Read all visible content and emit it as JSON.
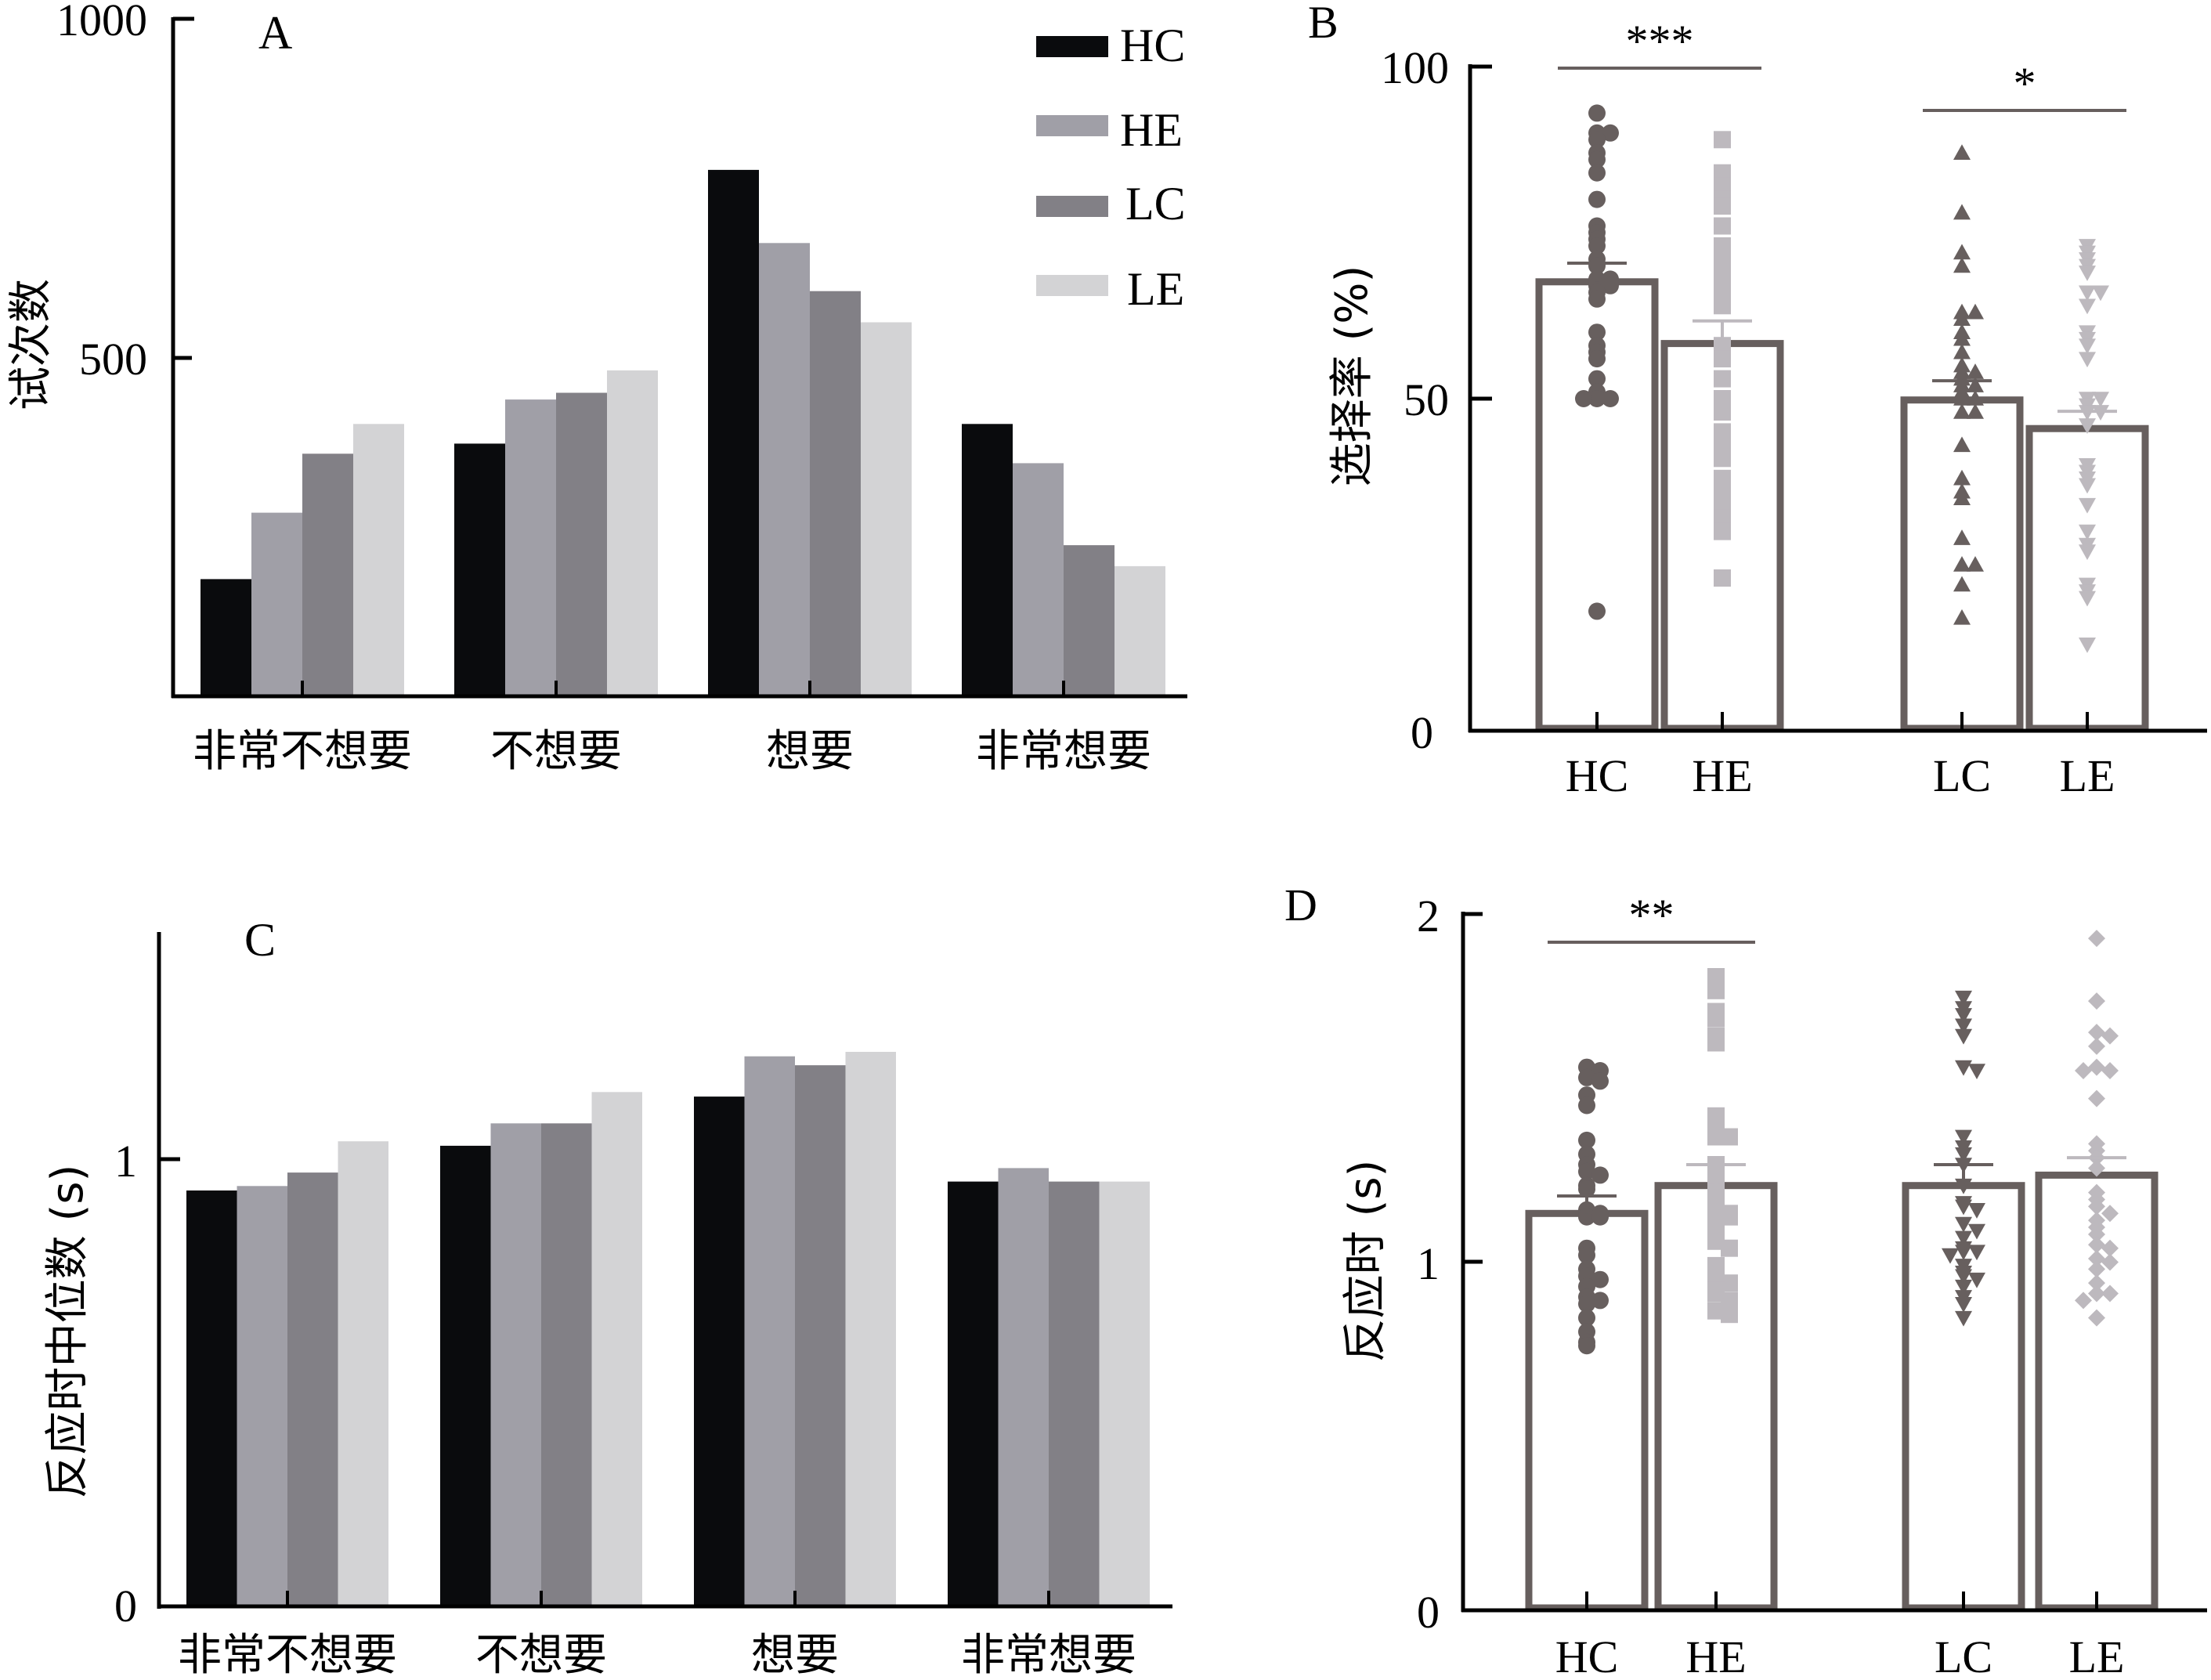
{
  "colors": {
    "HC": "#0a0b0d",
    "HE": "#a09fa7",
    "LC": "#828086",
    "LE": "#d3d3d5",
    "bar_outline": "#675f5e",
    "dot_dark": "#675f5e",
    "dot_light": "#bdb9be",
    "axis": "#000000"
  },
  "chart_data": [
    {
      "id": "A",
      "panel_label": "A",
      "type": "bar",
      "title": "",
      "xlabel": "",
      "ylabel": "试次数",
      "ylim": [
        0,
        1000
      ],
      "yticks": [
        {
          "value": 500,
          "label": "500"
        },
        {
          "value": 1000,
          "label": "1000"
        }
      ],
      "categories": [
        "非常不想要",
        "不想要",
        "想要",
        "非常想要"
      ],
      "legend": {
        "placement": "top-right",
        "entries": [
          "HC",
          "HE",
          "LC",
          "LE"
        ]
      },
      "series": [
        {
          "name": "HC",
          "values": [
            173,
            373,
            777,
            402
          ]
        },
        {
          "name": "HE",
          "values": [
            271,
            438,
            669,
            344
          ]
        },
        {
          "name": "LC",
          "values": [
            358,
            448,
            598,
            223
          ]
        },
        {
          "name": "LE",
          "values": [
            402,
            481,
            552,
            192
          ]
        }
      ]
    },
    {
      "id": "B",
      "panel_label": "B",
      "type": "bar",
      "title": "",
      "xlabel": "",
      "ylabel": "选择率 (%)",
      "ylim": [
        0,
        100
      ],
      "yticks": [
        {
          "value": 0,
          "label": "0"
        },
        {
          "value": 50,
          "label": "50"
        },
        {
          "value": 100,
          "label": "100"
        }
      ],
      "categories": [
        "HC",
        "HE",
        "LC",
        "LE"
      ],
      "values": [
        67.6,
        58.3,
        49.8,
        45.5
      ],
      "error_sem": [
        2.8,
        3.4,
        2.9,
        2.6
      ],
      "markers": [
        "circle",
        "square",
        "triangle-up",
        "triangle-down"
      ],
      "points": {
        "HC": [
          93,
          90,
          90,
          89,
          87,
          86,
          84,
          80,
          76,
          75,
          74,
          73,
          71,
          70,
          68,
          68,
          67,
          67,
          66,
          65,
          60,
          58,
          57,
          56,
          53,
          51,
          50,
          50,
          50,
          18
        ],
        "HE": [
          89,
          84,
          83,
          82,
          80,
          79,
          76,
          73,
          71,
          70,
          69,
          68,
          67,
          66,
          64,
          58,
          56,
          53,
          50,
          49,
          48,
          45,
          43,
          41,
          38,
          36,
          34,
          32,
          30,
          23
        ],
        "LC": [
          87,
          78,
          72,
          70,
          63,
          63,
          62,
          60,
          59,
          57,
          55,
          54,
          54,
          53,
          52,
          52,
          51,
          50,
          50,
          48,
          48,
          43,
          38,
          36,
          35,
          29,
          25,
          25,
          22,
          17
        ],
        "LE": [
          73,
          72,
          71,
          70,
          69,
          66,
          66,
          64,
          60,
          59,
          58,
          56,
          50,
          50,
          49,
          48,
          48,
          46,
          40,
          39,
          38,
          37,
          34,
          30,
          28,
          27,
          22,
          21,
          20,
          13
        ]
      },
      "significance": [
        {
          "pair": [
            "HC",
            "HE"
          ],
          "label": "***"
        },
        {
          "pair": [
            "LC",
            "LE"
          ],
          "label": "*"
        }
      ]
    },
    {
      "id": "C",
      "panel_label": "C",
      "type": "bar",
      "title": "",
      "xlabel": "",
      "ylabel": "反应时中位数 (s)",
      "ylim": [
        0,
        1.5
      ],
      "yticks": [
        {
          "value": 0,
          "label": "0"
        },
        {
          "value": 1,
          "label": "1"
        }
      ],
      "categories": [
        "非常不想要",
        "不想要",
        "想要",
        "非常想要"
      ],
      "series": [
        {
          "name": "HC",
          "values": [
            0.93,
            1.03,
            1.14,
            0.95
          ]
        },
        {
          "name": "HE",
          "values": [
            0.94,
            1.08,
            1.23,
            0.98
          ]
        },
        {
          "name": "LC",
          "values": [
            0.97,
            1.08,
            1.21,
            0.95
          ]
        },
        {
          "name": "LE",
          "values": [
            1.04,
            1.15,
            1.24,
            0.95
          ]
        }
      ]
    },
    {
      "id": "D",
      "panel_label": "D",
      "type": "bar",
      "title": "",
      "xlabel": "",
      "ylabel": "反应时 (s)",
      "ylim": [
        0,
        2
      ],
      "yticks": [
        {
          "value": 0,
          "label": "0"
        },
        {
          "value": 1,
          "label": "1"
        },
        {
          "value": 2,
          "label": "2"
        }
      ],
      "categories": [
        "HC",
        "HE",
        "LC",
        "LE"
      ],
      "values": [
        1.14,
        1.22,
        1.22,
        1.25
      ],
      "error_sem": [
        0.05,
        0.06,
        0.06,
        0.05
      ],
      "markers": [
        "circle",
        "square",
        "triangle-down",
        "diamond"
      ],
      "points": {
        "HC": [
          1.56,
          1.55,
          1.53,
          1.52,
          1.48,
          1.45,
          1.35,
          1.31,
          1.28,
          1.26,
          1.25,
          1.22,
          1.21,
          1.15,
          1.14,
          1.13,
          1.13,
          1.04,
          1.02,
          0.98,
          0.96,
          0.95,
          0.93,
          0.9,
          0.89,
          0.88,
          0.84,
          0.8,
          0.77,
          0.76
        ],
        "HE": [
          1.82,
          1.78,
          1.72,
          1.7,
          1.65,
          1.63,
          1.42,
          1.4,
          1.36,
          1.36,
          1.28,
          1.24,
          1.2,
          1.16,
          1.14,
          1.13,
          1.13,
          1.1,
          1.08,
          1.06,
          1.04,
          0.99,
          0.97,
          0.96,
          0.94,
          0.92,
          0.91,
          0.89,
          0.86,
          0.85
        ],
        "LC": [
          1.76,
          1.73,
          1.71,
          1.68,
          1.65,
          1.56,
          1.55,
          1.36,
          1.33,
          1.31,
          1.28,
          1.22,
          1.17,
          1.16,
          1.15,
          1.11,
          1.09,
          1.07,
          1.04,
          1.03,
          1.03,
          1.02,
          0.99,
          0.97,
          0.96,
          0.95,
          0.93,
          0.9,
          0.88,
          0.84
        ],
        "LE": [
          1.93,
          1.75,
          1.66,
          1.65,
          1.62,
          1.56,
          1.55,
          1.55,
          1.47,
          1.34,
          1.32,
          1.3,
          1.27,
          1.2,
          1.18,
          1.16,
          1.14,
          1.12,
          1.1,
          1.08,
          1.05,
          1.04,
          1.01,
          1.0,
          0.98,
          0.94,
          0.91,
          0.91,
          0.89,
          0.84
        ]
      },
      "significance": [
        {
          "pair": [
            "HC",
            "HE"
          ],
          "label": "**"
        }
      ]
    }
  ]
}
